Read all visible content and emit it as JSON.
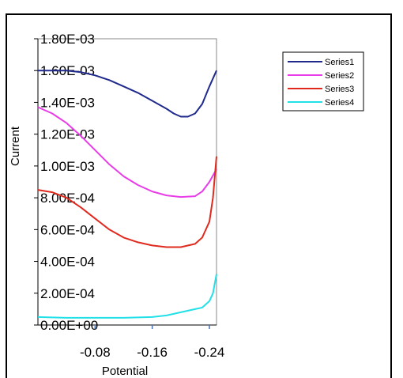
{
  "chart_data": {
    "type": "line",
    "title": "",
    "xlabel": "Potential",
    "ylabel": "Current",
    "x_ticks": [
      "-0.08",
      "-0.16",
      "-0.24"
    ],
    "x_tick_values": [
      -0.08,
      -0.16,
      -0.24
    ],
    "xlim": [
      0.0,
      -0.25
    ],
    "y_ticks": [
      "0.00E+00",
      "2.00E-04",
      "4.00E-04",
      "6.00E-04",
      "8.00E-04",
      "1.00E-03",
      "1.20E-03",
      "1.40E-03",
      "1.60E-03",
      "1.80E-03"
    ],
    "ylim": [
      0,
      0.0018
    ],
    "grid": false,
    "legend_position": "top-right",
    "series": [
      {
        "name": "Series1",
        "color": "#1f2a8c",
        "x": [
          0.0,
          -0.02,
          -0.04,
          -0.06,
          -0.08,
          -0.1,
          -0.12,
          -0.14,
          -0.16,
          -0.18,
          -0.19,
          -0.2,
          -0.21,
          -0.22,
          -0.23,
          -0.24,
          -0.25
        ],
        "y": [
          0.0016,
          0.0016,
          0.0016,
          0.00159,
          0.00157,
          0.00154,
          0.0015,
          0.00146,
          0.00141,
          0.00136,
          0.00133,
          0.00131,
          0.00131,
          0.00133,
          0.00139,
          0.0015,
          0.0016
        ]
      },
      {
        "name": "Series2",
        "color": "#e83ce8",
        "x": [
          0.0,
          -0.02,
          -0.04,
          -0.06,
          -0.08,
          -0.1,
          -0.12,
          -0.14,
          -0.16,
          -0.18,
          -0.2,
          -0.22,
          -0.23,
          -0.24,
          -0.25
        ],
        "y": [
          0.00137,
          0.00133,
          0.00127,
          0.00119,
          0.0011,
          0.00101,
          0.000935,
          0.00088,
          0.00084,
          0.000815,
          0.000805,
          0.00081,
          0.00084,
          0.0009,
          0.00098
        ]
      },
      {
        "name": "Series3",
        "color": "#e02a1e",
        "x": [
          0.0,
          -0.02,
          -0.04,
          -0.06,
          -0.08,
          -0.1,
          -0.12,
          -0.14,
          -0.16,
          -0.18,
          -0.2,
          -0.22,
          -0.23,
          -0.24,
          -0.245,
          -0.25
        ],
        "y": [
          0.00085,
          0.000835,
          0.0008,
          0.00074,
          0.00067,
          0.0006,
          0.00055,
          0.00052,
          0.0005,
          0.00049,
          0.00049,
          0.00051,
          0.00055,
          0.00065,
          0.0008,
          0.00106
        ]
      },
      {
        "name": "Series4",
        "color": "#22e0e8",
        "x": [
          0.0,
          -0.04,
          -0.08,
          -0.12,
          -0.16,
          -0.18,
          -0.2,
          -0.21,
          -0.22,
          -0.23,
          -0.24,
          -0.245,
          -0.25
        ],
        "y": [
          5e-05,
          4.5e-05,
          4.5e-05,
          4.5e-05,
          5e-05,
          6e-05,
          8e-05,
          9e-05,
          0.0001,
          0.00011,
          0.00015,
          0.0002,
          0.00032
        ]
      }
    ]
  }
}
